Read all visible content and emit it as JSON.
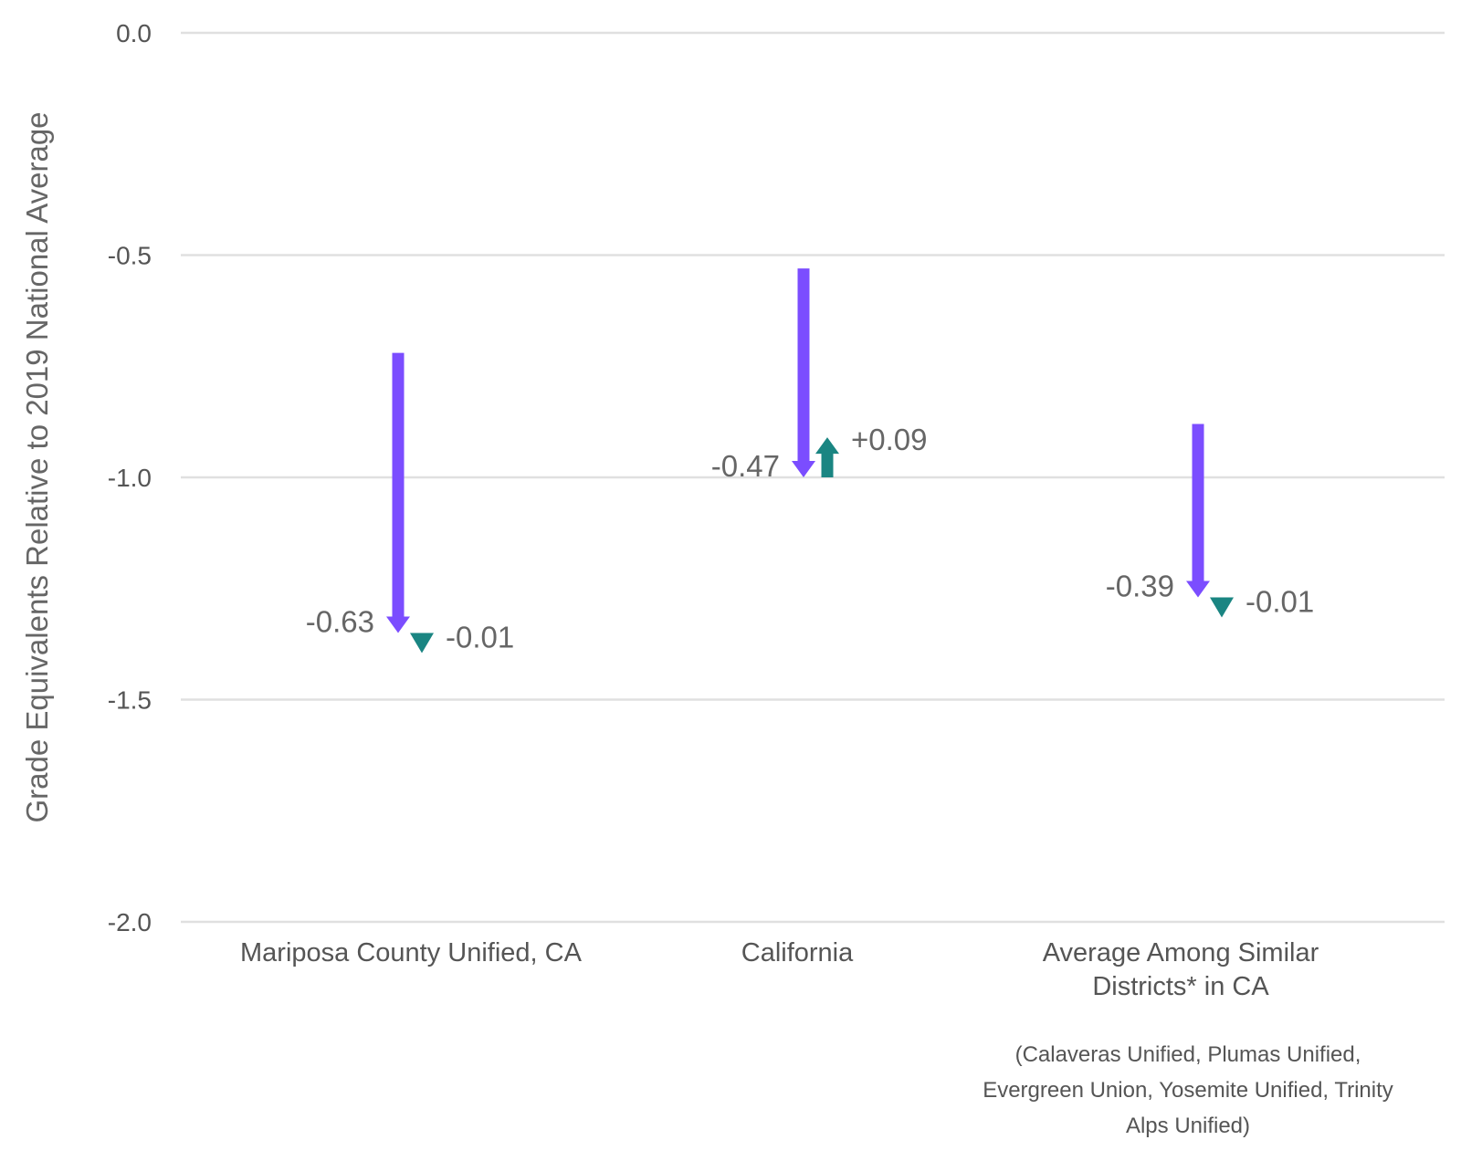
{
  "chart_data": {
    "type": "arrow",
    "ylabel": "Grade Equivalents Relative to 2019 National Average",
    "ylim": [
      -2.0,
      0.0
    ],
    "yticks": [
      {
        "value": 0.0,
        "label": "0.0"
      },
      {
        "value": -0.5,
        "label": "-0.5"
      },
      {
        "value": -1.0,
        "label": "-1.0"
      },
      {
        "value": -1.5,
        "label": "-1.5"
      },
      {
        "value": -2.0,
        "label": "-2.0"
      }
    ],
    "grid": true,
    "categories": [
      {
        "label_lines": [
          "Mariposa County Unified, CA"
        ],
        "decline": {
          "start": -0.72,
          "end": -1.35,
          "label": "-0.63"
        },
        "change": {
          "start": -1.35,
          "end": -1.36,
          "label": "-0.01"
        }
      },
      {
        "label_lines": [
          "California"
        ],
        "decline": {
          "start": -0.53,
          "end": -1.0,
          "label": "-0.47"
        },
        "change": {
          "start": -1.0,
          "end": -0.91,
          "label": "+0.09"
        }
      },
      {
        "label_lines": [
          "Average Among Similar",
          "Districts* in CA"
        ],
        "decline": {
          "start": -0.88,
          "end": -1.27,
          "label": "-0.39"
        },
        "change": {
          "start": -1.27,
          "end": -1.28,
          "label": "-0.01"
        }
      }
    ],
    "footnote_lines": [
      "(Calaveras Unified, Plumas Unified,",
      "Evergreen Union, Yosemite Unified, Trinity",
      "Alps Unified)"
    ],
    "colors": {
      "decline": "#7b4dff",
      "change": "#1a8582",
      "grid": "#e0e0e0"
    }
  }
}
